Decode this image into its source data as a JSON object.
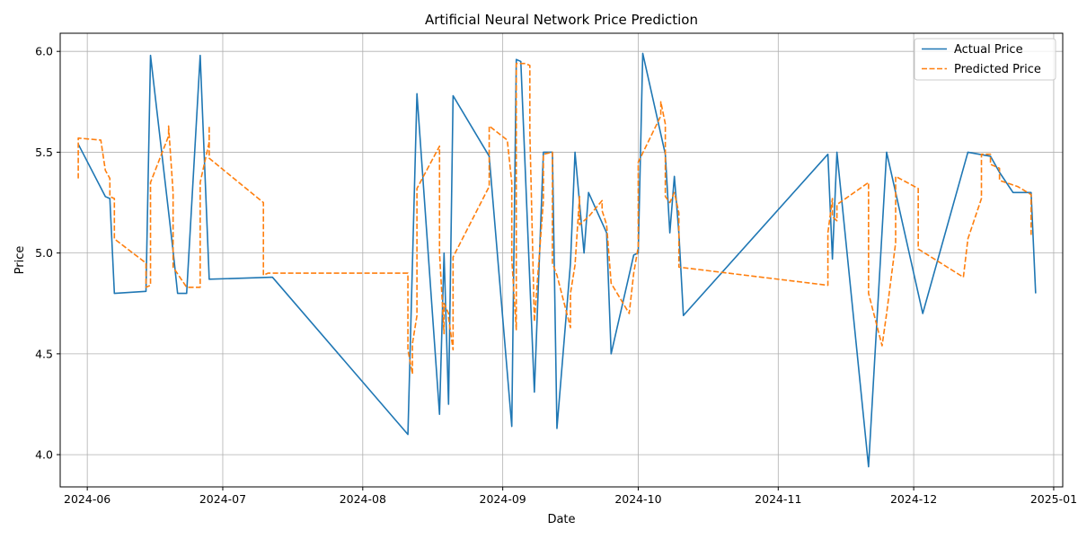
{
  "chart_data": {
    "type": "line",
    "title": "Artificial Neural Network Price Prediction",
    "xlabel": "Date",
    "ylabel": "Price",
    "x_type": "date",
    "xlim": [
      "2024-05-26",
      "2025-01-03"
    ],
    "ylim": [
      3.84,
      6.09
    ],
    "grid": true,
    "legend_position": "top-right",
    "x_ticks": [
      {
        "date": "2024-06-01",
        "label": "2024-06"
      },
      {
        "date": "2024-07-01",
        "label": "2024-07"
      },
      {
        "date": "2024-08-01",
        "label": "2024-08"
      },
      {
        "date": "2024-09-01",
        "label": "2024-09"
      },
      {
        "date": "2024-10-01",
        "label": "2024-10"
      },
      {
        "date": "2024-11-01",
        "label": "2024-11"
      },
      {
        "date": "2024-12-01",
        "label": "2024-12"
      },
      {
        "date": "2025-01-01",
        "label": "2025-01"
      }
    ],
    "y_ticks": [
      {
        "value": 4.0,
        "label": "4.0"
      },
      {
        "value": 4.5,
        "label": "4.5"
      },
      {
        "value": 5.0,
        "label": "5.0"
      },
      {
        "value": 5.5,
        "label": "5.5"
      },
      {
        "value": 6.0,
        "label": "6.0"
      }
    ],
    "series": [
      {
        "name": "Actual Price",
        "color": "#1f77b4",
        "style": "solid",
        "points": [
          [
            "2024-05-30",
            5.54
          ],
          [
            "2024-06-05",
            5.28
          ],
          [
            "2024-06-06",
            5.27
          ],
          [
            "2024-06-07",
            4.8
          ],
          [
            "2024-06-14",
            4.81
          ],
          [
            "2024-06-15",
            5.98
          ],
          [
            "2024-06-20",
            5.01
          ],
          [
            "2024-06-21",
            4.8
          ],
          [
            "2024-06-23",
            4.8
          ],
          [
            "2024-06-26",
            5.98
          ],
          [
            "2024-06-28",
            4.87
          ],
          [
            "2024-07-12",
            4.88
          ],
          [
            "2024-08-11",
            4.1
          ],
          [
            "2024-08-13",
            5.79
          ],
          [
            "2024-08-18",
            4.2
          ],
          [
            "2024-08-19",
            5.0
          ],
          [
            "2024-08-20",
            4.25
          ],
          [
            "2024-08-21",
            5.78
          ],
          [
            "2024-08-29",
            5.48
          ],
          [
            "2024-09-03",
            4.14
          ],
          [
            "2024-09-04",
            5.96
          ],
          [
            "2024-09-05",
            5.95
          ],
          [
            "2024-09-08",
            4.31
          ],
          [
            "2024-09-10",
            5.5
          ],
          [
            "2024-09-12",
            5.5
          ],
          [
            "2024-09-13",
            4.13
          ],
          [
            "2024-09-16",
            4.95
          ],
          [
            "2024-09-17",
            5.5
          ],
          [
            "2024-09-19",
            5.0
          ],
          [
            "2024-09-20",
            5.3
          ],
          [
            "2024-09-24",
            5.1
          ],
          [
            "2024-09-25",
            4.5
          ],
          [
            "2024-09-30",
            4.99
          ],
          [
            "2024-10-01",
            5.0
          ],
          [
            "2024-10-02",
            5.99
          ],
          [
            "2024-10-07",
            5.49
          ],
          [
            "2024-10-08",
            5.1
          ],
          [
            "2024-10-09",
            5.38
          ],
          [
            "2024-10-10",
            5.1
          ],
          [
            "2024-10-11",
            4.69
          ],
          [
            "2024-11-12",
            5.49
          ],
          [
            "2024-11-13",
            4.97
          ],
          [
            "2024-11-14",
            5.5
          ],
          [
            "2024-11-21",
            3.94
          ],
          [
            "2024-11-25",
            5.5
          ],
          [
            "2024-12-03",
            4.7
          ],
          [
            "2024-12-13",
            5.5
          ],
          [
            "2024-12-18",
            5.48
          ],
          [
            "2024-12-20",
            5.4
          ],
          [
            "2024-12-23",
            5.3
          ],
          [
            "2024-12-27",
            5.3
          ],
          [
            "2024-12-28",
            4.8
          ]
        ]
      },
      {
        "name": "Predicted Price",
        "color": "#ff7f0e",
        "style": "dashed",
        "points": [
          [
            "2024-05-30",
            5.37
          ],
          [
            "2024-05-30",
            5.57
          ],
          [
            "2024-06-04",
            5.56
          ],
          [
            "2024-06-05",
            5.41
          ],
          [
            "2024-06-06",
            5.37
          ],
          [
            "2024-06-06",
            5.28
          ],
          [
            "2024-06-07",
            5.27
          ],
          [
            "2024-06-07",
            5.07
          ],
          [
            "2024-06-14",
            4.95
          ],
          [
            "2024-06-14",
            4.83
          ],
          [
            "2024-06-15",
            4.84
          ],
          [
            "2024-06-15",
            5.35
          ],
          [
            "2024-06-19",
            5.58
          ],
          [
            "2024-06-19",
            5.63
          ],
          [
            "2024-06-20",
            5.3
          ],
          [
            "2024-06-20",
            4.93
          ],
          [
            "2024-06-23",
            4.83
          ],
          [
            "2024-06-26",
            4.83
          ],
          [
            "2024-06-26",
            5.35
          ],
          [
            "2024-06-28",
            5.55
          ],
          [
            "2024-06-28",
            5.63
          ],
          [
            "2024-06-28",
            5.47
          ],
          [
            "2024-07-10",
            5.25
          ],
          [
            "2024-07-10",
            4.89
          ],
          [
            "2024-07-11",
            4.9
          ],
          [
            "2024-08-11",
            4.9
          ],
          [
            "2024-08-11",
            4.52
          ],
          [
            "2024-08-12",
            4.4
          ],
          [
            "2024-08-12",
            4.55
          ],
          [
            "2024-08-13",
            4.69
          ],
          [
            "2024-08-13",
            5.32
          ],
          [
            "2024-08-18",
            5.53
          ],
          [
            "2024-08-18",
            5.0
          ],
          [
            "2024-08-19",
            4.6
          ],
          [
            "2024-08-19",
            4.75
          ],
          [
            "2024-08-20",
            4.7
          ],
          [
            "2024-08-20",
            4.68
          ],
          [
            "2024-08-21",
            4.52
          ],
          [
            "2024-08-21",
            4.98
          ],
          [
            "2024-08-29",
            5.33
          ],
          [
            "2024-08-29",
            5.63
          ],
          [
            "2024-09-02",
            5.56
          ],
          [
            "2024-09-03",
            5.35
          ],
          [
            "2024-09-03",
            4.97
          ],
          [
            "2024-09-04",
            4.62
          ],
          [
            "2024-09-04",
            5.94
          ],
          [
            "2024-09-06",
            5.94
          ],
          [
            "2024-09-07",
            5.93
          ],
          [
            "2024-09-07",
            5.6
          ],
          [
            "2024-09-08",
            4.66
          ],
          [
            "2024-09-10",
            5.26
          ],
          [
            "2024-09-10",
            5.49
          ],
          [
            "2024-09-12",
            5.5
          ],
          [
            "2024-09-12",
            4.95
          ],
          [
            "2024-09-13",
            4.89
          ],
          [
            "2024-09-16",
            4.63
          ],
          [
            "2024-09-16",
            4.8
          ],
          [
            "2024-09-17",
            4.94
          ],
          [
            "2024-09-18",
            5.28
          ],
          [
            "2024-09-18",
            5.14
          ],
          [
            "2024-09-20",
            5.18
          ],
          [
            "2024-09-23",
            5.26
          ],
          [
            "2024-09-23",
            5.21
          ],
          [
            "2024-09-24",
            5.14
          ],
          [
            "2024-09-25",
            4.85
          ],
          [
            "2024-09-29",
            4.7
          ],
          [
            "2024-09-30",
            4.9
          ],
          [
            "2024-10-01",
            5.03
          ],
          [
            "2024-10-01",
            5.45
          ],
          [
            "2024-10-06",
            5.68
          ],
          [
            "2024-10-06",
            5.75
          ],
          [
            "2024-10-07",
            5.64
          ],
          [
            "2024-10-07",
            5.28
          ],
          [
            "2024-10-08",
            5.25
          ],
          [
            "2024-10-09",
            5.3
          ],
          [
            "2024-10-10",
            5.2
          ],
          [
            "2024-10-10",
            4.93
          ],
          [
            "2024-11-12",
            4.84
          ],
          [
            "2024-11-12",
            5.1
          ],
          [
            "2024-11-13",
            5.27
          ],
          [
            "2024-11-13",
            5.18
          ],
          [
            "2024-11-14",
            5.16
          ],
          [
            "2024-11-14",
            5.24
          ],
          [
            "2024-11-21",
            5.35
          ],
          [
            "2024-11-21",
            4.8
          ],
          [
            "2024-11-24",
            4.54
          ],
          [
            "2024-11-25",
            4.7
          ],
          [
            "2024-11-27",
            5.05
          ],
          [
            "2024-11-27",
            5.38
          ],
          [
            "2024-12-02",
            5.32
          ],
          [
            "2024-12-02",
            5.02
          ],
          [
            "2024-12-12",
            4.88
          ],
          [
            "2024-12-13",
            5.07
          ],
          [
            "2024-12-16",
            5.27
          ],
          [
            "2024-12-16",
            5.49
          ],
          [
            "2024-12-18",
            5.49
          ],
          [
            "2024-12-18",
            5.44
          ],
          [
            "2024-12-20",
            5.42
          ],
          [
            "2024-12-20",
            5.36
          ],
          [
            "2024-12-24",
            5.33
          ],
          [
            "2024-12-27",
            5.29
          ],
          [
            "2024-12-27",
            5.09
          ]
        ]
      }
    ]
  }
}
